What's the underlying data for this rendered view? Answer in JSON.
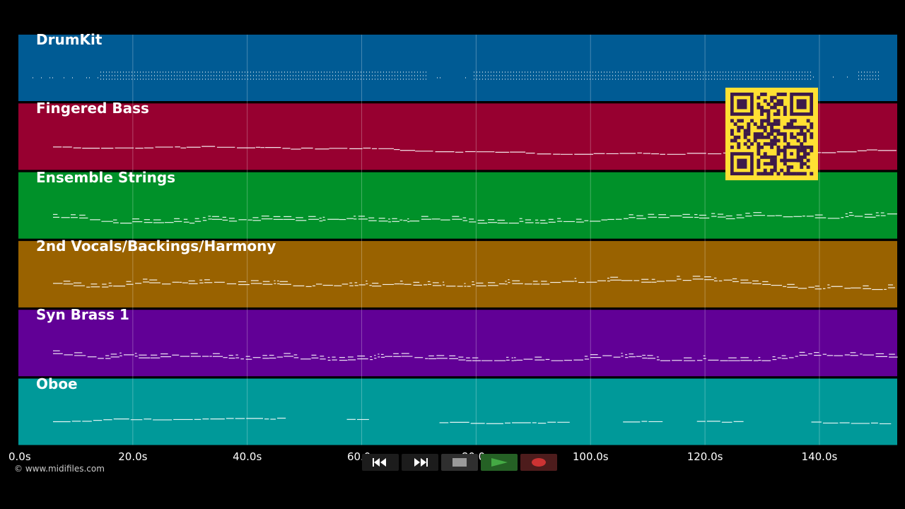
{
  "tracks": [
    {
      "name": "DrumKit",
      "color": "#005b94",
      "pattern": "drums"
    },
    {
      "name": "Fingered Bass",
      "color": "#970030",
      "pattern": "line"
    },
    {
      "name": "Ensemble Strings",
      "color": "#009129",
      "pattern": "busy"
    },
    {
      "name": "2nd Vocals/Backings/Harmony",
      "color": "#996200",
      "pattern": "busy"
    },
    {
      "name": "Syn Brass 1",
      "color": "#610096",
      "pattern": "busy"
    },
    {
      "name": "Oboe",
      "color": "#009999",
      "pattern": "sparse"
    }
  ],
  "timeline": {
    "duration_s": 153.6,
    "ticks": [
      "0.0s",
      "20.0s",
      "40.0s",
      "60.0s",
      "80.0s",
      "100.0s",
      "120.0s",
      "140.0s"
    ],
    "tick_values": [
      0,
      20,
      40,
      60,
      80,
      100,
      120,
      140
    ]
  },
  "copyright": "© www.midifiles.com",
  "transport": {
    "rewind_icon": "rewind-icon",
    "fast_forward_icon": "fast-forward-icon",
    "stop_icon": "stop-icon",
    "play_icon": "play-icon",
    "record_icon": "record-icon",
    "play_color": "#44aa44",
    "record_color": "#cc3333"
  },
  "qr_colors": {
    "background": "#ffe033",
    "foreground": "#3d1a4a"
  }
}
